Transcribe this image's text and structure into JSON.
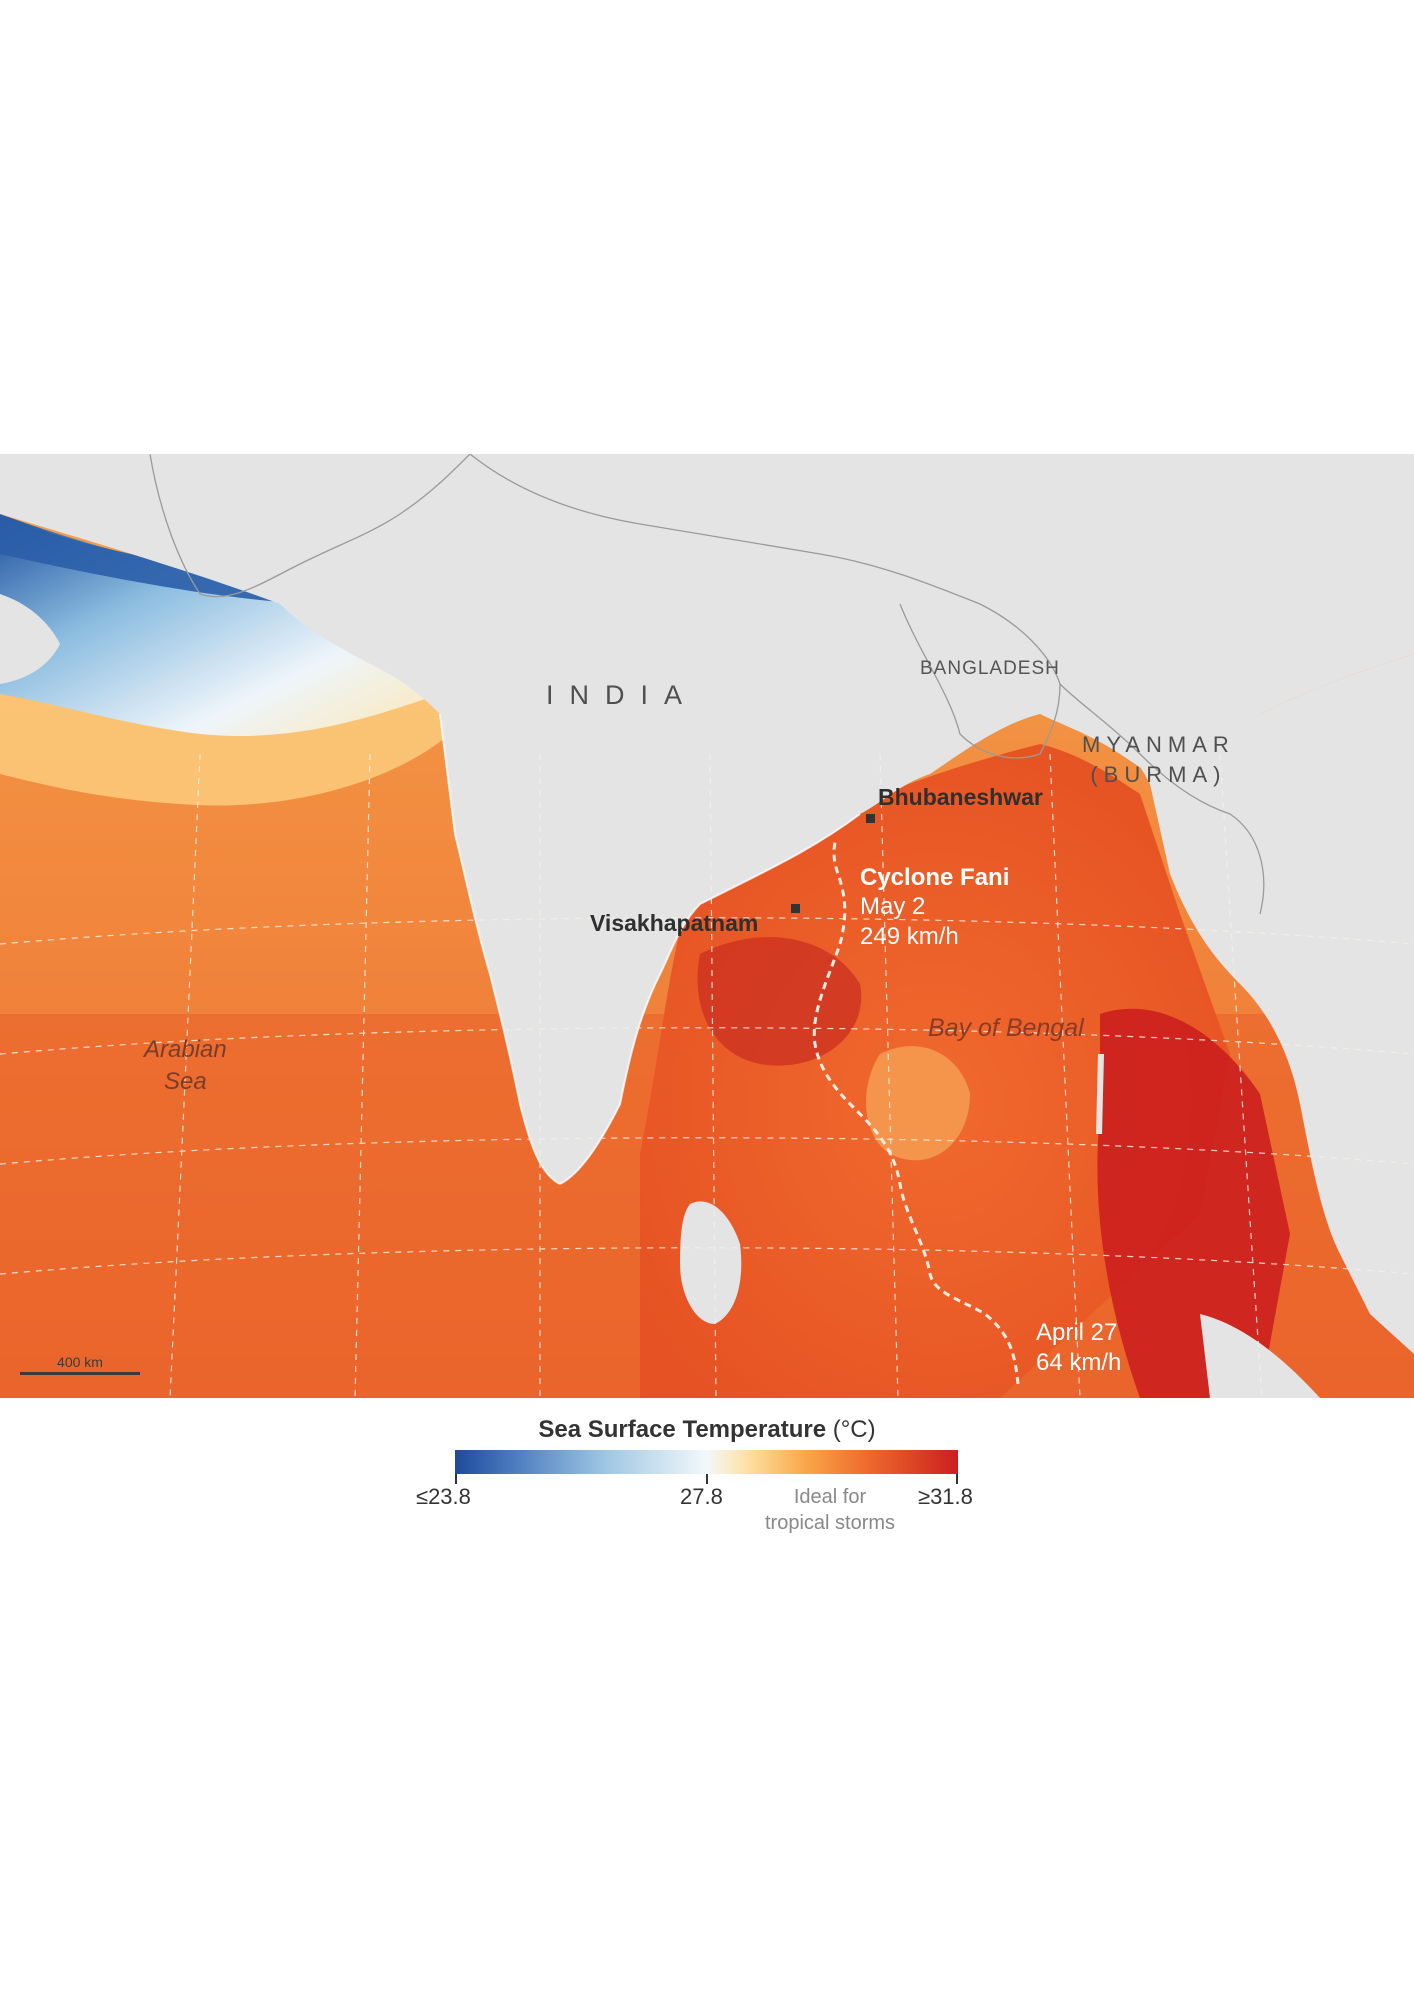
{
  "map": {
    "labels": {
      "india": "INDIA",
      "bangladesh": "BANGLADESH",
      "myanmar_line1": "MYANMAR",
      "myanmar_line2": "(BURMA)",
      "arabian_sea_line1": "Arabian",
      "arabian_sea_line2": "Sea",
      "bay_of_bengal": "Bay of Bengal"
    },
    "cities": [
      {
        "name": "Bhubaneshwar"
      },
      {
        "name": "Visakhapatnam"
      }
    ],
    "cyclone": {
      "name": "Cyclone Fani",
      "landfall_date": "May 2",
      "landfall_speed": "249 km/h",
      "start_date": "April 27",
      "start_speed": "64 km/h"
    },
    "scale_bar": "400 km",
    "colors": {
      "land": "#e4e4e4",
      "coast": "#ffffff",
      "track": "#f6ecdf",
      "sst_cold": "#1f4a9b",
      "sst_neutral": "#f3f8fb",
      "sst_warm": "#ee6a2d",
      "sst_hot": "#cc1f1e"
    }
  },
  "legend": {
    "title_bold": "Sea Surface Temperature",
    "title_unit": " (°C)",
    "min_label": "≤23.8",
    "mid_label": "27.8",
    "max_label": "≥31.8",
    "ideal_line1": "Ideal for",
    "ideal_line2": "tropical storms"
  }
}
